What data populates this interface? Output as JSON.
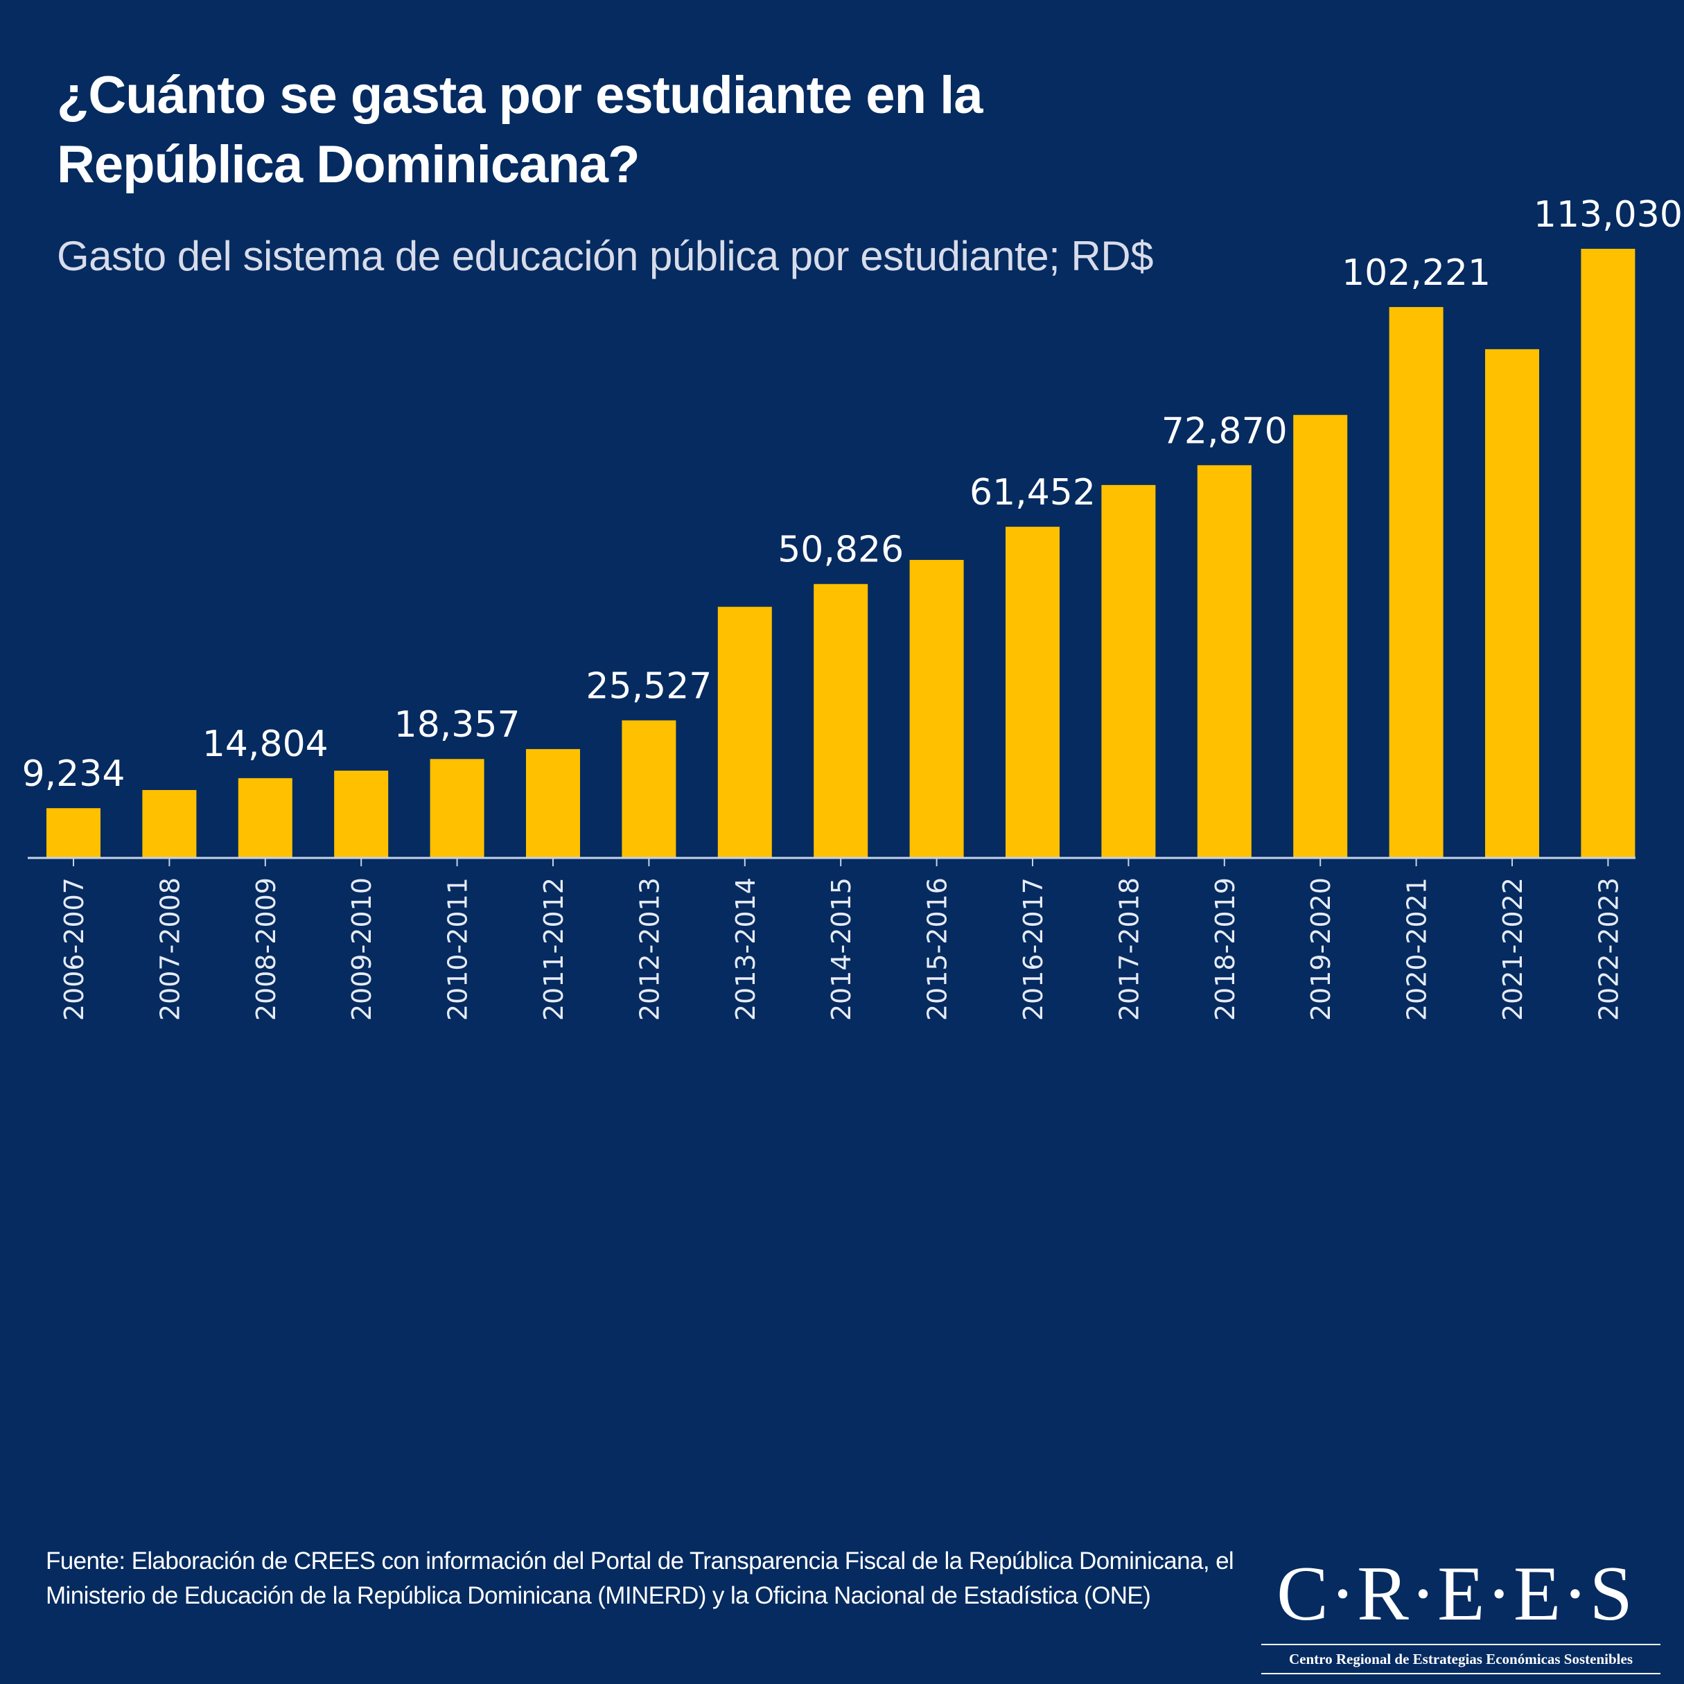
{
  "header": {
    "title_line1": "¿Cuánto se gasta por estudiante en la",
    "title_line2": "República Dominicana?",
    "subtitle": "Gasto del sistema de educación pública por estudiante; RD$"
  },
  "footer": {
    "source": "Fuente: Elaboración de CREES con información del Portal de Transparencia Fiscal de la República Dominicana, el Ministerio de Educación de la República Dominicana (MINERD) y la Oficina Nacional de Estadística (ONE)",
    "logo_letters": [
      "C",
      "R",
      "E",
      "E",
      "S"
    ],
    "logo_separator": "·",
    "logo_word": "C·R·E·E·S",
    "logo_subtitle": "Centro Regional de Estrategias Económicas Sostenibles"
  },
  "colors": {
    "background": "#052b60",
    "bar": "#ffc000",
    "text": "#ffffff",
    "subtitle": "#d8dcea",
    "axis": "#c8d2e6"
  },
  "chart_data": {
    "type": "bar",
    "title": "¿Cuánto se gasta por estudiante en la República Dominicana?",
    "subtitle": "Gasto del sistema de educación pública por estudiante; RD$",
    "xlabel": "",
    "ylabel": "RD$",
    "ylim": [
      0,
      113030
    ],
    "grid": false,
    "legend": "none",
    "categories": [
      "2006-2007",
      "2007-2008",
      "2008-2009",
      "2009-2010",
      "2010-2011",
      "2011-2012",
      "2012-2013",
      "2013-2014",
      "2014-2015",
      "2015-2016",
      "2016-2017",
      "2017-2018",
      "2018-2019",
      "2019-2020",
      "2020-2021",
      "2021-2022",
      "2022-2023"
    ],
    "values": [
      9234,
      12600,
      14804,
      16200,
      18357,
      20200,
      25527,
      46600,
      50826,
      55300,
      61452,
      69200,
      72870,
      82200,
      102221,
      94400,
      113030
    ],
    "labels": [
      "9,234",
      "",
      "14,804",
      "",
      "18,357",
      "",
      "25,527",
      "",
      "50,826",
      "",
      "61,452",
      "",
      "72,870",
      "",
      "102,221",
      "",
      "113,030"
    ],
    "label_shown": [
      true,
      false,
      true,
      false,
      true,
      false,
      true,
      false,
      true,
      false,
      true,
      false,
      true,
      false,
      true,
      false,
      true
    ]
  }
}
